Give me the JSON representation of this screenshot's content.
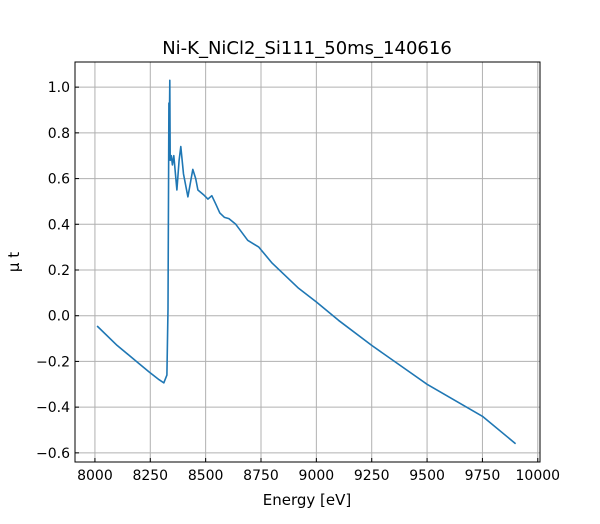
{
  "chart_data": {
    "type": "line",
    "title": "Ni-K_NiCl2_Si111_50ms_140616",
    "xlabel": "Energy [eV]",
    "ylabel": "μ t",
    "xlim": [
      7910,
      10010
    ],
    "ylim": [
      -0.64,
      1.11
    ],
    "xticks": [
      8000,
      8250,
      8500,
      8750,
      9000,
      9250,
      9500,
      9750,
      10000
    ],
    "yticks": [
      -0.6,
      -0.4,
      -0.2,
      0.0,
      0.2,
      0.4,
      0.6,
      0.8,
      1.0
    ],
    "xtick_labels": [
      "8000",
      "8250",
      "8500",
      "8750",
      "9000",
      "9250",
      "9500",
      "9750",
      "10000"
    ],
    "ytick_labels": [
      "−0.6",
      "−0.4",
      "−0.2",
      "0.0",
      "0.2",
      "0.4",
      "0.6",
      "0.8",
      "1.0"
    ],
    "grid": true,
    "color": "#1f77b4",
    "series": [
      {
        "name": "mu_t",
        "x": [
          8010,
          8100,
          8200,
          8244,
          8290,
          8311,
          8325,
          8330,
          8334,
          8335,
          8336,
          8338,
          8340,
          8345,
          8350,
          8356,
          8370,
          8380,
          8388,
          8400,
          8420,
          8442,
          8455,
          8465,
          8490,
          8510,
          8528,
          8545,
          8564,
          8585,
          8605,
          8636,
          8690,
          8740,
          8800,
          8920,
          9000,
          9100,
          9250,
          9500,
          9750,
          9900
        ],
        "y": [
          -0.045,
          -0.13,
          -0.21,
          -0.246,
          -0.28,
          -0.294,
          -0.26,
          0.03,
          0.93,
          0.84,
          0.8,
          1.03,
          0.68,
          0.7,
          0.66,
          0.7,
          0.55,
          0.68,
          0.74,
          0.62,
          0.52,
          0.64,
          0.6,
          0.55,
          0.53,
          0.51,
          0.525,
          0.49,
          0.45,
          0.43,
          0.425,
          0.4,
          0.33,
          0.3,
          0.23,
          0.12,
          0.06,
          -0.02,
          -0.13,
          -0.3,
          -0.44,
          -0.56
        ]
      }
    ]
  }
}
